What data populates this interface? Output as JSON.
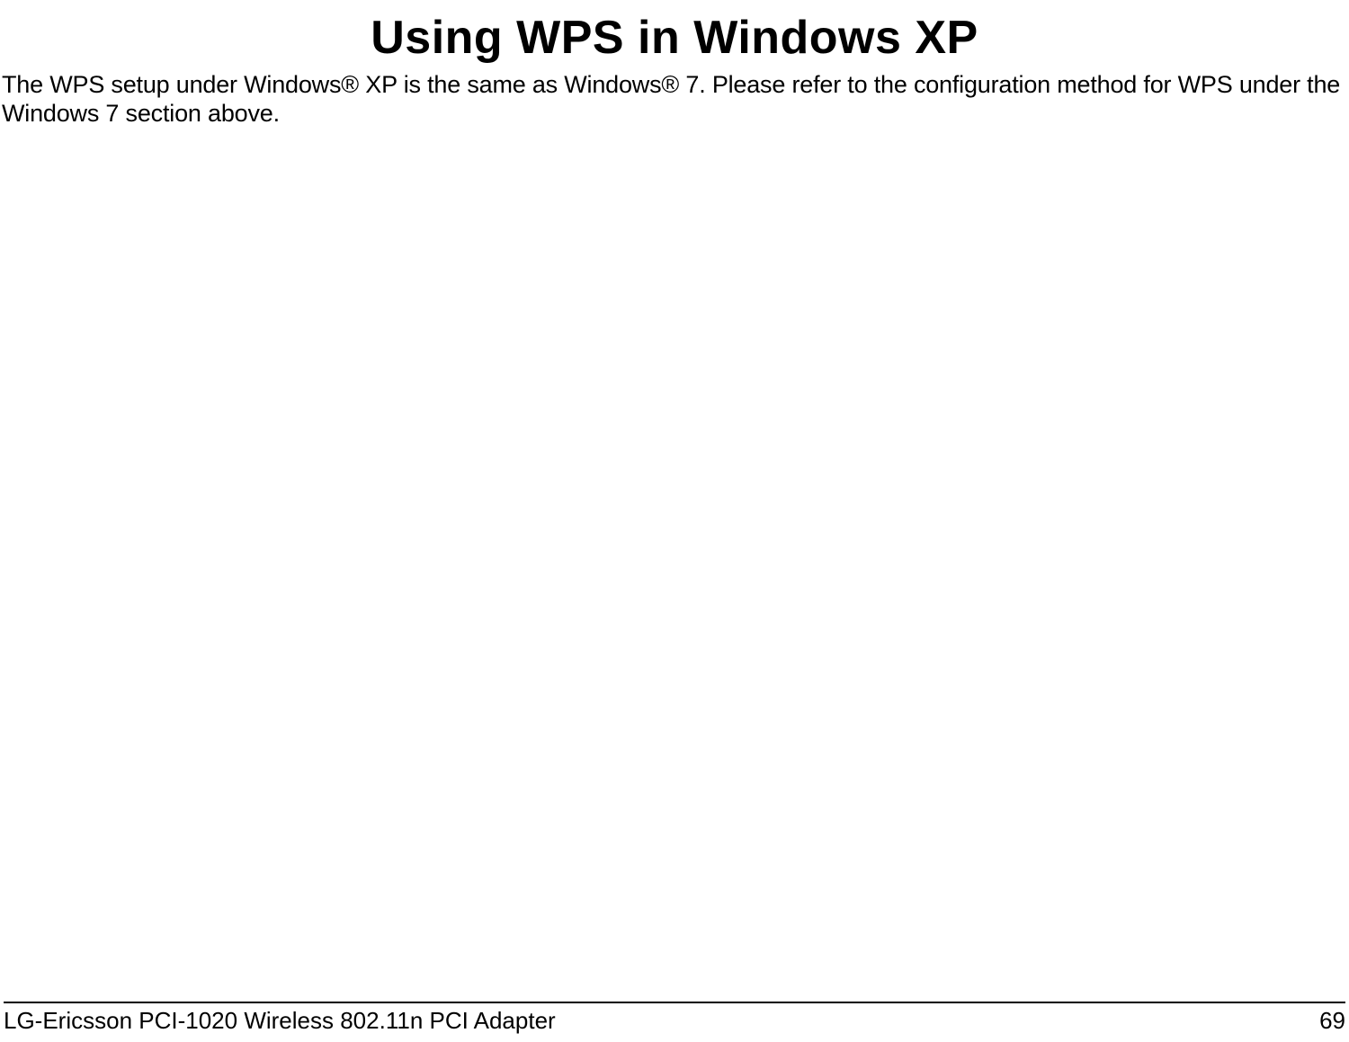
{
  "typography": {
    "title_font": "Arial Narrow",
    "title_fontsize_pt": 39,
    "title_fontweight": 700,
    "body_font": "Helvetica",
    "body_fontsize_pt": 20,
    "body_fontweight": 400,
    "footer_font": "Arial Narrow",
    "footer_fontsize_pt": 19,
    "footer_fontweight": 400
  },
  "colors": {
    "text": "#000000",
    "background": "#ffffff",
    "rule": "#000000"
  },
  "title": "Using WPS in Windows XP",
  "body": "The WPS setup under Windows® XP is the same as Windows® 7. Please refer to the configuration method for WPS under the Windows 7 section above.",
  "footer": {
    "product": "LG-Ericsson PCI-1020 Wireless 802.11n PCI Adapter",
    "page_number": "69"
  }
}
